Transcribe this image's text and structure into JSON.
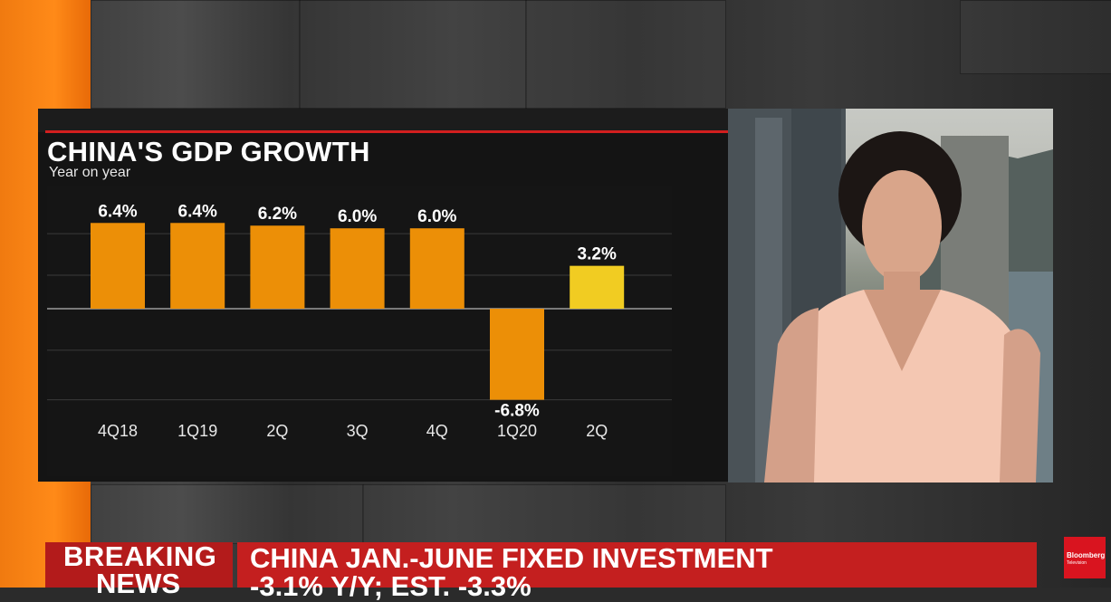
{
  "chart_data": {
    "type": "bar",
    "title": "CHINA'S GDP GROWTH",
    "subtitle": "Year on year",
    "categories": [
      "4Q18",
      "1Q19",
      "2Q",
      "3Q",
      "4Q",
      "1Q20",
      "2Q"
    ],
    "values": [
      6.4,
      6.4,
      6.2,
      6.0,
      6.0,
      -6.8,
      3.2
    ],
    "value_labels": [
      "6.4%",
      "6.4%",
      "6.2%",
      "6.0%",
      "6.0%",
      "-6.8%",
      "3.2%"
    ],
    "colors": [
      "#ec8f07",
      "#ec8f07",
      "#ec8f07",
      "#ec8f07",
      "#ec8f07",
      "#ec8f07",
      "#f1cc22"
    ],
    "ylim": [
      -6.8,
      6.4
    ],
    "grid": true,
    "legend": "none"
  },
  "lower_third": {
    "breaking_line1": "BREAKING",
    "breaking_line2": "NEWS",
    "headline_line1": "CHINA JAN.-JUNE FIXED INVESTMENT",
    "headline_line2": "-3.1% Y/Y; EST. -3.3%"
  },
  "logo": {
    "name": "Bloomberg",
    "sub": "Television"
  },
  "colors": {
    "breaking_red": "#b31b1b",
    "headline_red": "#c41f1f",
    "bar_orange": "#ec8f07",
    "bar_highlight": "#f1cc22",
    "accent_line": "#d21f1f"
  }
}
